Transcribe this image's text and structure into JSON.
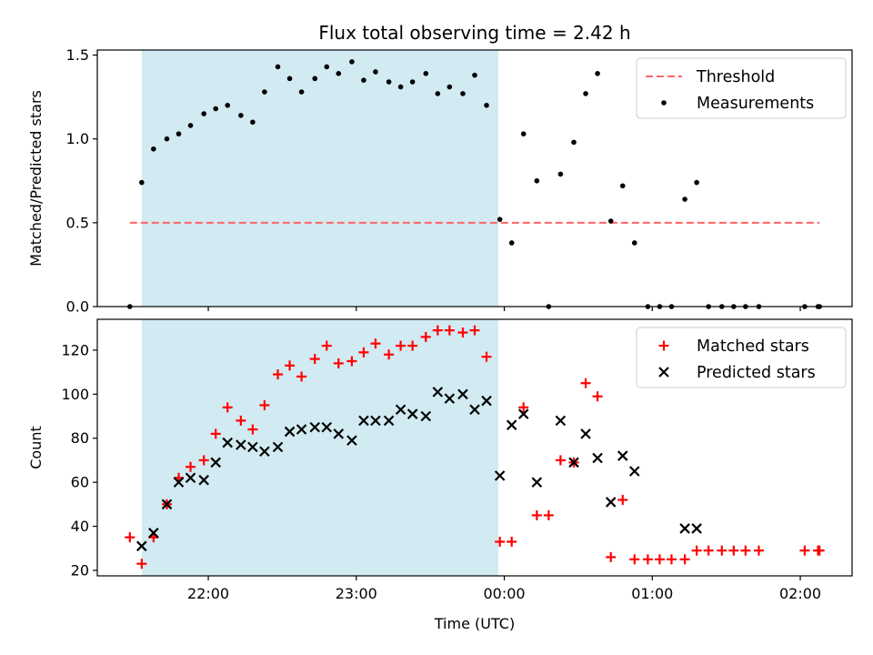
{
  "chart_data": {
    "type": "scatter",
    "title": "Flux total observing time = 2.42 h",
    "x_axis": {
      "label": "Time (UTC)",
      "unit": "hours since 00:00 UTC",
      "range": [
        -2.75,
        2.35
      ],
      "ticks": [
        {
          "value": -2,
          "label": "22:00"
        },
        {
          "value": -1,
          "label": "23:00"
        },
        {
          "value": 0,
          "label": "00:00"
        },
        {
          "value": 1,
          "label": "01:00"
        },
        {
          "value": 2,
          "label": "02:00"
        }
      ]
    },
    "observing_window": {
      "start": -2.45,
      "end": -0.04,
      "color": "#add8e6"
    },
    "colors": {
      "threshold": "#ff6464",
      "measurements": "#000000",
      "matched": "#ff0000",
      "predicted": "#000000",
      "window": "#add8e6"
    },
    "panels": [
      {
        "id": "ratio",
        "ylabel": "Matched/Predicted stars",
        "ylim": [
          0,
          1.53
        ],
        "yticks": [
          {
            "value": 0,
            "label": "0.0"
          },
          {
            "value": 0.5,
            "label": "0.5"
          },
          {
            "value": 1.0,
            "label": "1.0"
          },
          {
            "value": 1.5,
            "label": "1.5"
          }
        ],
        "legend": {
          "position": "upper right",
          "entries": [
            "Threshold",
            "Measurements"
          ]
        },
        "threshold": {
          "name": "Threshold",
          "y": 0.5,
          "x_range": [
            -2.53,
            2.13
          ]
        },
        "series": [
          {
            "name": "Measurements",
            "marker": "dot",
            "points": [
              [
                -2.53,
                0.0
              ],
              [
                -2.45,
                0.74
              ],
              [
                -2.37,
                0.94
              ],
              [
                -2.28,
                1.0
              ],
              [
                -2.2,
                1.03
              ],
              [
                -2.12,
                1.08
              ],
              [
                -2.03,
                1.15
              ],
              [
                -1.95,
                1.18
              ],
              [
                -1.87,
                1.2
              ],
              [
                -1.78,
                1.14
              ],
              [
                -1.7,
                1.1
              ],
              [
                -1.62,
                1.28
              ],
              [
                -1.53,
                1.43
              ],
              [
                -1.45,
                1.36
              ],
              [
                -1.37,
                1.28
              ],
              [
                -1.28,
                1.36
              ],
              [
                -1.2,
                1.43
              ],
              [
                -1.12,
                1.39
              ],
              [
                -1.03,
                1.46
              ],
              [
                -0.95,
                1.35
              ],
              [
                -0.87,
                1.4
              ],
              [
                -0.78,
                1.34
              ],
              [
                -0.7,
                1.31
              ],
              [
                -0.62,
                1.34
              ],
              [
                -0.53,
                1.39
              ],
              [
                -0.45,
                1.27
              ],
              [
                -0.37,
                1.31
              ],
              [
                -0.28,
                1.27
              ],
              [
                -0.2,
                1.38
              ],
              [
                -0.12,
                1.2
              ],
              [
                -0.03,
                0.52
              ],
              [
                0.05,
                0.38
              ],
              [
                0.13,
                1.03
              ],
              [
                0.22,
                0.75
              ],
              [
                0.3,
                0.0
              ],
              [
                0.38,
                0.79
              ],
              [
                0.47,
                0.98
              ],
              [
                0.55,
                1.27
              ],
              [
                0.63,
                1.39
              ],
              [
                0.72,
                0.51
              ],
              [
                0.8,
                0.72
              ],
              [
                0.88,
                0.38
              ],
              [
                0.97,
                0.0
              ],
              [
                1.05,
                0.0
              ],
              [
                1.13,
                0.0
              ],
              [
                1.22,
                0.64
              ],
              [
                1.3,
                0.74
              ],
              [
                1.38,
                0.0
              ],
              [
                1.47,
                0.0
              ],
              [
                1.55,
                0.0
              ],
              [
                1.63,
                0.0
              ],
              [
                1.72,
                0.0
              ],
              [
                2.03,
                0.0
              ],
              [
                2.12,
                0.0
              ],
              [
                2.13,
                0.0
              ]
            ]
          }
        ]
      },
      {
        "id": "counts",
        "ylabel": "Count",
        "ylim": [
          17.5,
          134
        ],
        "yticks": [
          {
            "value": 20,
            "label": "20"
          },
          {
            "value": 40,
            "label": "40"
          },
          {
            "value": 60,
            "label": "60"
          },
          {
            "value": 80,
            "label": "80"
          },
          {
            "value": 100,
            "label": "100"
          },
          {
            "value": 120,
            "label": "120"
          }
        ],
        "legend": {
          "position": "upper right",
          "entries": [
            "Matched stars",
            "Predicted stars"
          ]
        },
        "series": [
          {
            "name": "Matched stars",
            "marker": "plus",
            "points": [
              [
                -2.53,
                35
              ],
              [
                -2.45,
                23
              ],
              [
                -2.37,
                35
              ],
              [
                -2.28,
                50
              ],
              [
                -2.2,
                62
              ],
              [
                -2.12,
                67
              ],
              [
                -2.03,
                70
              ],
              [
                -1.95,
                82
              ],
              [
                -1.87,
                94
              ],
              [
                -1.78,
                88
              ],
              [
                -1.7,
                84
              ],
              [
                -1.62,
                95
              ],
              [
                -1.53,
                109
              ],
              [
                -1.45,
                113
              ],
              [
                -1.37,
                108
              ],
              [
                -1.28,
                116
              ],
              [
                -1.2,
                122
              ],
              [
                -1.12,
                114
              ],
              [
                -1.03,
                115
              ],
              [
                -0.95,
                119
              ],
              [
                -0.87,
                123
              ],
              [
                -0.78,
                118
              ],
              [
                -0.7,
                122
              ],
              [
                -0.62,
                122
              ],
              [
                -0.53,
                126
              ],
              [
                -0.45,
                129
              ],
              [
                -0.37,
                129
              ],
              [
                -0.28,
                128
              ],
              [
                -0.2,
                129
              ],
              [
                -0.12,
                117
              ],
              [
                -0.03,
                33
              ],
              [
                0.05,
                33
              ],
              [
                0.13,
                94
              ],
              [
                0.22,
                45
              ],
              [
                0.3,
                45
              ],
              [
                0.38,
                70
              ],
              [
                0.47,
                69
              ],
              [
                0.55,
                105
              ],
              [
                0.63,
                99
              ],
              [
                0.72,
                26
              ],
              [
                0.8,
                52
              ],
              [
                0.88,
                25
              ],
              [
                0.97,
                25
              ],
              [
                1.05,
                25
              ],
              [
                1.13,
                25
              ],
              [
                1.22,
                25
              ],
              [
                1.3,
                29
              ],
              [
                1.38,
                29
              ],
              [
                1.47,
                29
              ],
              [
                1.55,
                29
              ],
              [
                1.63,
                29
              ],
              [
                1.72,
                29
              ],
              [
                2.03,
                29
              ],
              [
                2.12,
                29
              ],
              [
                2.13,
                29
              ]
            ]
          },
          {
            "name": "Predicted stars",
            "marker": "x",
            "points": [
              [
                -2.45,
                31
              ],
              [
                -2.37,
                37
              ],
              [
                -2.28,
                50
              ],
              [
                -2.2,
                60
              ],
              [
                -2.12,
                62
              ],
              [
                -2.03,
                61
              ],
              [
                -1.95,
                69
              ],
              [
                -1.87,
                78
              ],
              [
                -1.78,
                77
              ],
              [
                -1.7,
                76
              ],
              [
                -1.62,
                74
              ],
              [
                -1.53,
                76
              ],
              [
                -1.45,
                83
              ],
              [
                -1.37,
                84
              ],
              [
                -1.28,
                85
              ],
              [
                -1.2,
                85
              ],
              [
                -1.12,
                82
              ],
              [
                -1.03,
                79
              ],
              [
                -0.95,
                88
              ],
              [
                -0.87,
                88
              ],
              [
                -0.78,
                88
              ],
              [
                -0.7,
                93
              ],
              [
                -0.62,
                91
              ],
              [
                -0.53,
                90
              ],
              [
                -0.45,
                101
              ],
              [
                -0.37,
                98
              ],
              [
                -0.28,
                100
              ],
              [
                -0.2,
                93
              ],
              [
                -0.12,
                97
              ],
              [
                -0.03,
                63
              ],
              [
                0.05,
                86
              ],
              [
                0.13,
                91
              ],
              [
                0.22,
                60
              ],
              [
                0.38,
                88
              ],
              [
                0.47,
                69
              ],
              [
                0.55,
                82
              ],
              [
                0.63,
                71
              ],
              [
                0.72,
                51
              ],
              [
                0.8,
                72
              ],
              [
                0.88,
                65
              ],
              [
                1.22,
                39
              ],
              [
                1.3,
                39
              ]
            ]
          }
        ]
      }
    ]
  }
}
